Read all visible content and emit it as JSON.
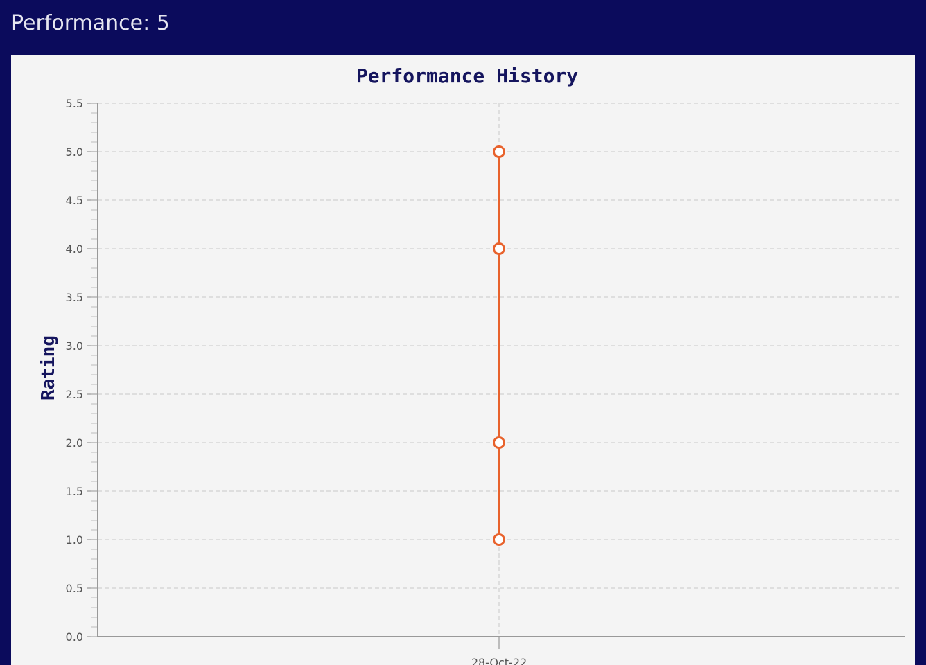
{
  "header": {
    "performance_label": "Performance: 5"
  },
  "chart_data": {
    "type": "line",
    "title": "Performance History",
    "xlabel": "",
    "ylabel": "Rating",
    "x_categories": [
      "28-Oct-22"
    ],
    "ylim": [
      0,
      5.5
    ],
    "y_ticks": [
      0.0,
      0.5,
      1.0,
      1.5,
      2.0,
      2.5,
      3.0,
      3.5,
      4.0,
      4.5,
      5.0,
      5.5
    ],
    "grid": true,
    "series": [
      {
        "points": [
          {
            "x": "28-Oct-22",
            "y": 5
          },
          {
            "x": "28-Oct-22",
            "y": 4
          },
          {
            "x": "28-Oct-22",
            "y": 2
          },
          {
            "x": "28-Oct-22",
            "y": 1
          }
        ],
        "color": "#e8622c"
      }
    ]
  }
}
